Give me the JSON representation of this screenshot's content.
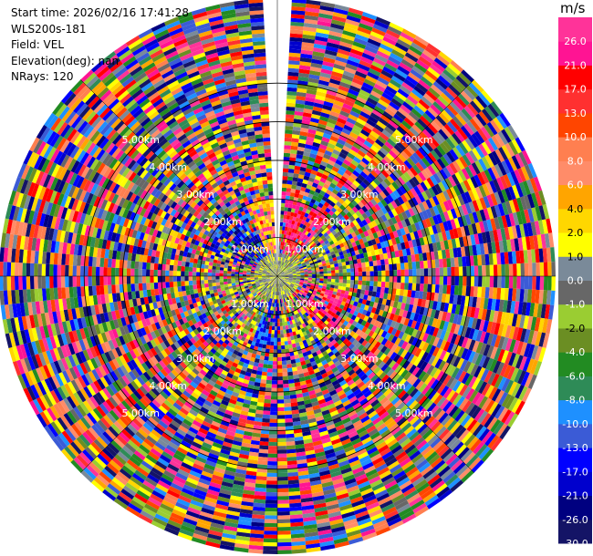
{
  "info": {
    "start_time": "Start time: 2026/02/16 17:41:28",
    "station": "WLS200s-181",
    "field": "Field: VEL",
    "elevation": "Elevation(deg): nan",
    "nrays": "NRays: 120"
  },
  "chart_data": {
    "type": "ppi-polar",
    "field": "VEL",
    "unit": "m/s",
    "nrays": 120,
    "range_rings_km": [
      1.0,
      2.0,
      3.0,
      4.0,
      5.0
    ],
    "range_ring_labels": [
      "1.00km",
      "2.00km",
      "3.00km",
      "4.00km",
      "5.00km"
    ],
    "max_range_km": 7.2,
    "colorbar": {
      "boundaries": [
        -30.0,
        -26.0,
        -21.0,
        -17.0,
        -13.0,
        -10.0,
        -8.0,
        -6.0,
        -4.0,
        -2.0,
        -1.0,
        0.0,
        1.0,
        2.0,
        4.0,
        6.0,
        8.0,
        10.0,
        13.0,
        17.0,
        21.0,
        26.0
      ],
      "tick_labels": [
        "-30.0",
        "-26.0",
        "-21.0",
        "-17.0",
        "-13.0",
        "-10.0",
        "-8.0",
        "-6.0",
        "-4.0",
        "-2.0",
        "-1.0",
        "0.0",
        "1.0",
        "2.0",
        "4.0",
        "6.0",
        "8.0",
        "10.0",
        "13.0",
        "17.0",
        "21.0",
        "26.0"
      ],
      "colors": [
        "#141466",
        "#000080",
        "#0000cd",
        "#0000ff",
        "#3b5bd6",
        "#1e90ff",
        "#2e8b57",
        "#228b22",
        "#6b8e23",
        "#9acd32",
        "#676767",
        "#7a8a99",
        "#ffff00",
        "#ffd700",
        "#ffa500",
        "#ff8c69",
        "#ff7f50",
        "#ff4500",
        "#ff3030",
        "#ff0000",
        "#ff1493",
        "#ff3399"
      ]
    }
  }
}
